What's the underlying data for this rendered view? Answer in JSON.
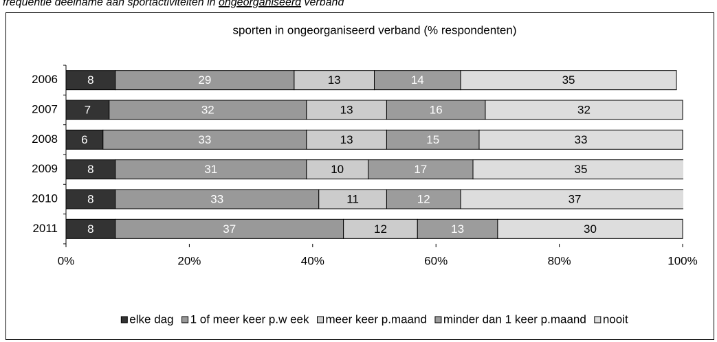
{
  "caption": {
    "before": "frequentie deelname aan sportactiviteiten in ",
    "underlined": "ongeorganiseerd",
    "after": " verband"
  },
  "chart_data": {
    "type": "stacked_bar_horizontal",
    "title": "sporten in ongeorganiseerd verband (% respondenten)",
    "categories": [
      "2006",
      "2007",
      "2008",
      "2009",
      "2010",
      "2011"
    ],
    "series": [
      {
        "name": "elke dag",
        "color": "#333333",
        "label_color": "#ffffff",
        "values": [
          8,
          7,
          6,
          8,
          8,
          8
        ]
      },
      {
        "name": "1 of meer keer p.w eek",
        "color": "#999999",
        "label_color": "#ffffff",
        "values": [
          29,
          32,
          33,
          31,
          33,
          37
        ]
      },
      {
        "name": "meer keer p.maand",
        "color": "#cccccc",
        "label_color": "#000000",
        "values": [
          13,
          13,
          13,
          10,
          11,
          12
        ]
      },
      {
        "name": "minder dan 1 keer p.maand",
        "color": "#9c9c9c",
        "label_color": "#ffffff",
        "values": [
          14,
          16,
          15,
          17,
          12,
          13
        ]
      },
      {
        "name": "nooit",
        "color": "#dddddd",
        "label_color": "#000000",
        "values": [
          35,
          32,
          33,
          35,
          37,
          30
        ]
      }
    ],
    "xlim": [
      0,
      100
    ],
    "xticks": [
      {
        "value": 0,
        "label": "0%"
      },
      {
        "value": 20,
        "label": "20%"
      },
      {
        "value": 40,
        "label": "40%"
      },
      {
        "value": 60,
        "label": "60%"
      },
      {
        "value": 80,
        "label": "80%"
      },
      {
        "value": 100,
        "label": "100%"
      }
    ],
    "legend": "bottom"
  }
}
